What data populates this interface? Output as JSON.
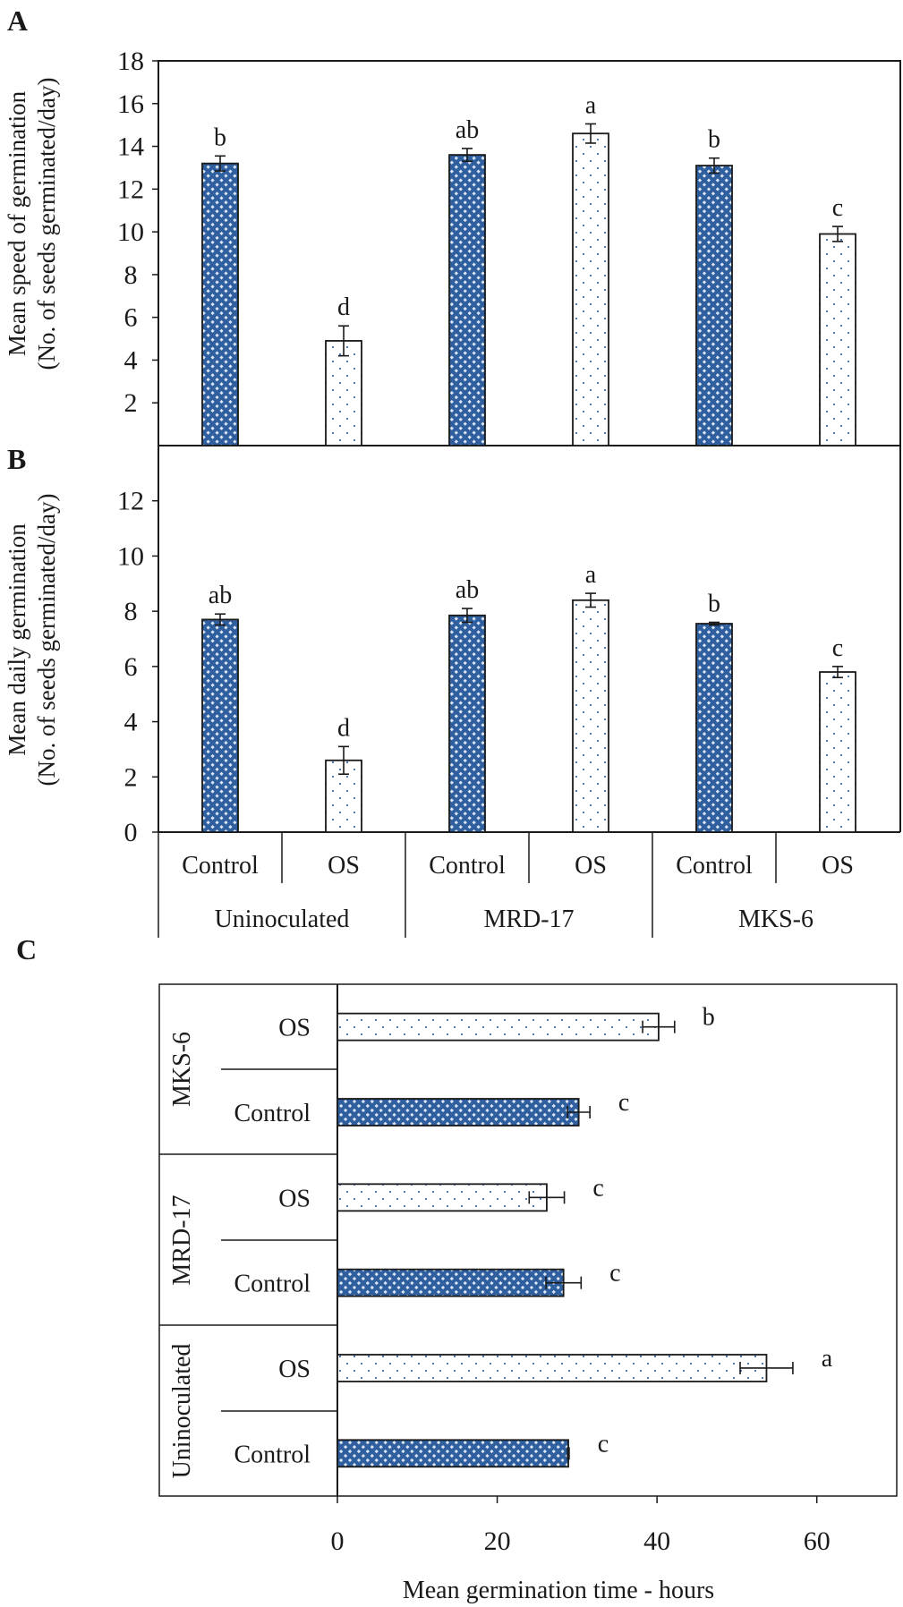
{
  "colors": {
    "control_fill": "#2f5f9e",
    "control_pattern": "#dbe6f4",
    "os_fill": "#ffffff",
    "os_dots": "#3b6fb4",
    "axis": "#1a1a1a",
    "error_bar": "#1a1a1a"
  },
  "panel_labels": {
    "a": "A",
    "b": "B",
    "c": "C"
  },
  "chart_data": [
    {
      "id": "A",
      "type": "bar",
      "ylabel_line1": "Mean speed of germination",
      "ylabel_line2": "(No. of seeds germinated/day)",
      "ylim": [
        0,
        18
      ],
      "yticks": [
        "2",
        "4",
        "6",
        "8",
        "10",
        "12",
        "14",
        "16",
        "18"
      ],
      "categories": [
        "Uninoculated Control",
        "Uninoculated OS",
        "MRD-17 Control",
        "MRD-17 OS",
        "MKS-6 Control",
        "MKS-6 OS"
      ],
      "values": [
        13.2,
        4.9,
        13.6,
        14.6,
        13.1,
        9.9
      ],
      "errors": [
        0.35,
        0.7,
        0.3,
        0.45,
        0.35,
        0.35
      ],
      "letters": [
        "b",
        "d",
        "ab",
        "a",
        "b",
        "c"
      ],
      "treatments": [
        "Control",
        "OS",
        "Control",
        "OS",
        "Control",
        "OS"
      ]
    },
    {
      "id": "B",
      "type": "bar",
      "ylabel_line1": "Mean daily germination",
      "ylabel_line2": "(No. of seeds germinated/day)",
      "ylim": [
        0,
        14
      ],
      "yticks": [
        "0",
        "2",
        "4",
        "6",
        "8",
        "10",
        "12"
      ],
      "categories": [
        "Uninoculated Control",
        "Uninoculated OS",
        "MRD-17 Control",
        "MRD-17 OS",
        "MKS-6 Control",
        "MKS-6 OS"
      ],
      "values": [
        7.7,
        2.6,
        7.85,
        8.4,
        7.55,
        5.8
      ],
      "errors": [
        0.2,
        0.5,
        0.25,
        0.25,
        0.05,
        0.2
      ],
      "letters": [
        "ab",
        "d",
        "ab",
        "a",
        "b",
        "c"
      ],
      "treatments": [
        "Control",
        "OS",
        "Control",
        "OS",
        "Control",
        "OS"
      ],
      "x_treatment_labels": [
        "Control",
        "OS",
        "Control",
        "OS",
        "Control",
        "OS"
      ],
      "x_group_labels": [
        "Uninoculated",
        "MRD-17",
        "MKS-6"
      ]
    },
    {
      "id": "C",
      "type": "bar",
      "orientation": "horizontal",
      "xlabel": "Mean germination time - hours",
      "xlim": [
        0,
        70
      ],
      "xticks": [
        "0",
        "20",
        "40",
        "60"
      ],
      "groups": [
        "MKS-6",
        "MRD-17",
        "Uninoculated"
      ],
      "rows": [
        {
          "group": "MKS-6",
          "treatment": "OS",
          "value": 40.2,
          "error": 2.0,
          "letter": "b"
        },
        {
          "group": "MKS-6",
          "treatment": "Control",
          "value": 30.2,
          "error": 1.4,
          "letter": "c"
        },
        {
          "group": "MRD-17",
          "treatment": "OS",
          "value": 26.2,
          "error": 2.2,
          "letter": "c"
        },
        {
          "group": "MRD-17",
          "treatment": "Control",
          "value": 28.3,
          "error": 2.2,
          "letter": "c"
        },
        {
          "group": "Uninoculated",
          "treatment": "OS",
          "value": 53.7,
          "error": 3.3,
          "letter": "a"
        },
        {
          "group": "Uninoculated",
          "treatment": "Control",
          "value": 28.9,
          "error": 0.1,
          "letter": "c"
        }
      ]
    }
  ]
}
